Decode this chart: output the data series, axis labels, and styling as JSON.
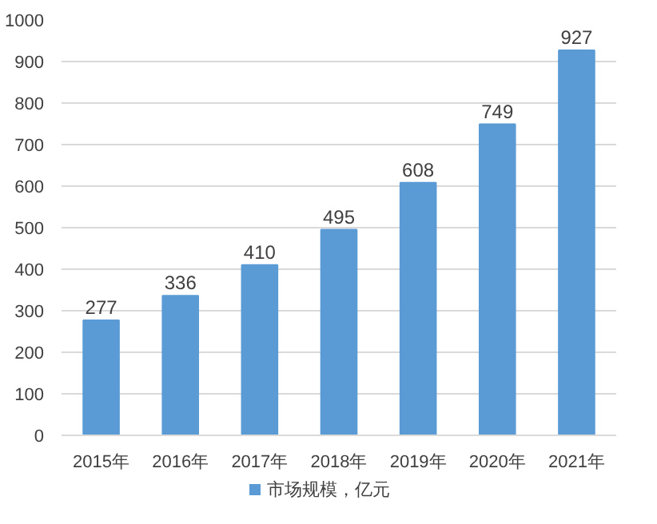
{
  "chart_data": {
    "type": "bar",
    "categories": [
      "2015年",
      "2016年",
      "2017年",
      "2018年",
      "2019年",
      "2020年",
      "2021年"
    ],
    "series": [
      {
        "name": "市场规模，亿元",
        "color": "#5b9bd5",
        "values": [
          277,
          336,
          410,
          495,
          608,
          749,
          927
        ]
      }
    ],
    "ylim": [
      0,
      1000
    ],
    "yticks": [
      0,
      100,
      200,
      300,
      400,
      500,
      600,
      700,
      800,
      900,
      1000
    ],
    "grid": "y",
    "legend": "bottom",
    "data_labels": true
  }
}
